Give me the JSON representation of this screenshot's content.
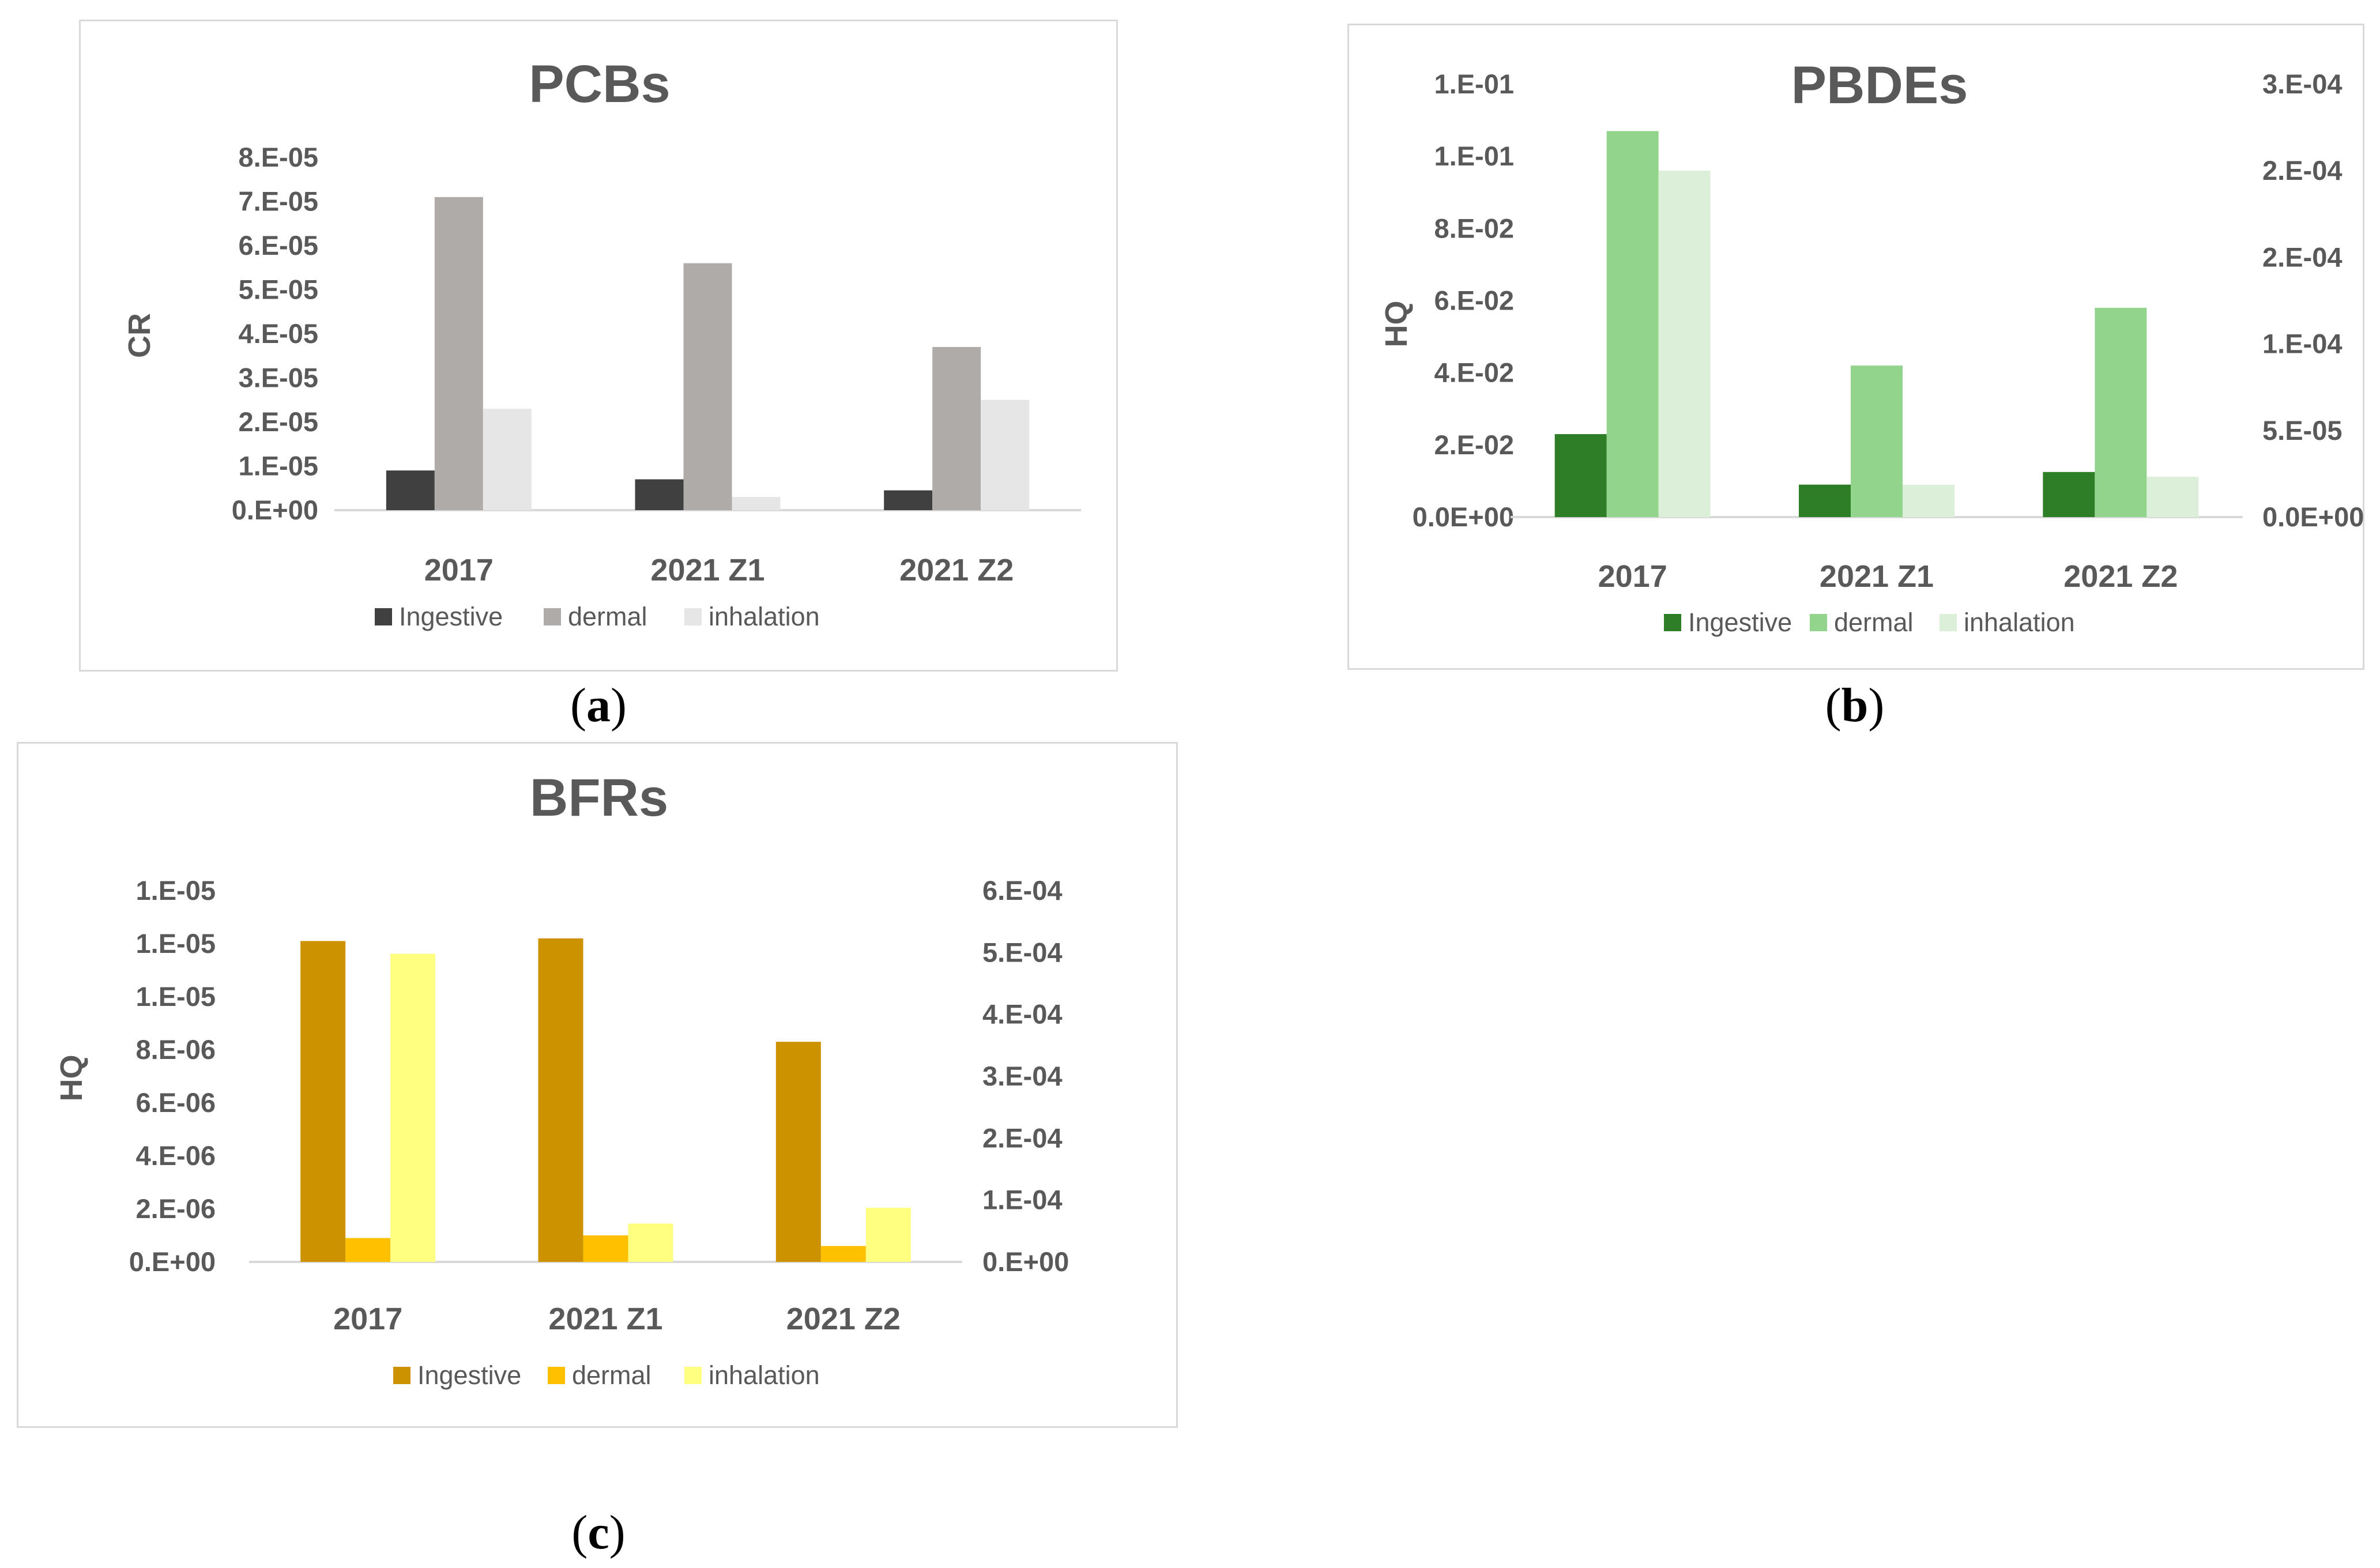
{
  "chart_data": [
    {
      "id": "a",
      "type": "bar",
      "title": "PCBs",
      "ylabel": "CR",
      "categories": [
        "2017",
        "2021 Z1",
        "2021 Z2"
      ],
      "y_ticks": [
        "0.E+00",
        "1.E-05",
        "2.E-05",
        "3.E-05",
        "4.E-05",
        "5.E-05",
        "6.E-05",
        "7.E-05",
        "8.E-05"
      ],
      "ylim": [
        0,
        8e-05
      ],
      "series": [
        {
          "name": "Ingestive",
          "color": "#404040",
          "axis": "primary",
          "values": [
            9e-06,
            7e-06,
            4.5e-06
          ]
        },
        {
          "name": "dermal",
          "color": "#afaba8",
          "axis": "primary",
          "values": [
            7.1e-05,
            5.6e-05,
            3.7e-05
          ]
        },
        {
          "name": "inhalation",
          "color": "#e6e6e6",
          "axis": "primary",
          "values": [
            2.3e-05,
            3e-06,
            2.5e-05
          ]
        }
      ],
      "legend": "bottom",
      "caption": "a"
    },
    {
      "id": "b",
      "type": "bar",
      "title": "PBDEs",
      "ylabel": "HQ",
      "categories": [
        "2017",
        "2021 Z1",
        "2021 Z2"
      ],
      "y_ticks": [
        "0.0E+00",
        "2.E-02",
        "4.E-02",
        "6.E-02",
        "8.E-02",
        "1.E-01",
        "1.E-01"
      ],
      "ylim": [
        0,
        0.12
      ],
      "y2_ticks": [
        "0.0E+00",
        "5.E-05",
        "1.E-04",
        "2.E-04",
        "2.E-04",
        "3.E-04"
      ],
      "y2lim": [
        0,
        0.00025
      ],
      "series": [
        {
          "name": "Ingestive",
          "color": "#2e7d27",
          "axis": "primary",
          "values": [
            0.023,
            0.009,
            0.0125
          ]
        },
        {
          "name": "dermal",
          "color": "#93d48c",
          "axis": "primary",
          "values": [
            0.107,
            0.042,
            0.058
          ]
        },
        {
          "name": "inhalation",
          "color": "#dcf0d9",
          "axis": "secondary",
          "values": [
            0.0002,
            1.87e-05,
            2.33e-05
          ]
        }
      ],
      "legend": "bottom",
      "caption": "b"
    },
    {
      "id": "c",
      "type": "bar",
      "title": "BFRs",
      "ylabel": "HQ",
      "categories": [
        "2017",
        "2021 Z1",
        "2021 Z2"
      ],
      "y_ticks": [
        "0.E+00",
        "2.E-06",
        "4.E-06",
        "6.E-06",
        "8.E-06",
        "1.E-05",
        "1.E-05",
        "1.E-05"
      ],
      "ylim": [
        0,
        1.4e-05
      ],
      "y2_ticks": [
        "0.E+00",
        "1.E-04",
        "2.E-04",
        "3.E-04",
        "4.E-04",
        "5.E-04",
        "6.E-04"
      ],
      "y2lim": [
        0,
        0.0006
      ],
      "series": [
        {
          "name": "Ingestive",
          "color": "#cc9200",
          "axis": "primary",
          "values": [
            1.21e-05,
            1.22e-05,
            8.3e-06
          ]
        },
        {
          "name": "dermal",
          "color": "#ffc000",
          "axis": "primary",
          "values": [
            9e-07,
            1e-06,
            6e-07
          ]
        },
        {
          "name": "inhalation",
          "color": "#ffff80",
          "axis": "secondary",
          "values": [
            0.000498,
            6.19e-05,
            8.75e-05
          ]
        }
      ],
      "legend": "bottom",
      "caption": "c"
    }
  ],
  "captions": {
    "a": "a",
    "b": "b",
    "c": "c"
  }
}
